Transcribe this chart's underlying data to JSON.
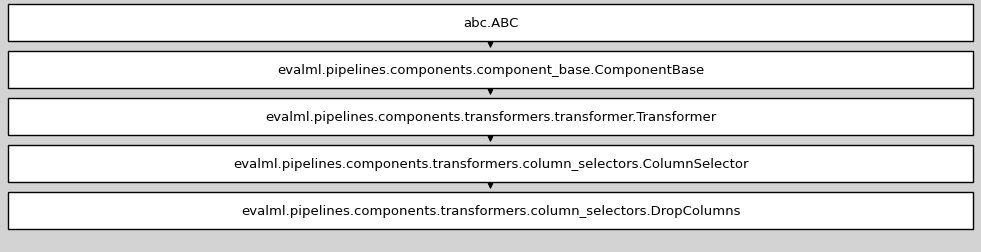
{
  "nodes": [
    "abc.ABC",
    "evalml.pipelines.components.component_base.ComponentBase",
    "evalml.pipelines.components.transformers.transformer.Transformer",
    "evalml.pipelines.components.transformers.column_selectors.ColumnSelector",
    "evalml.pipelines.components.transformers.column_selectors.DropColumns"
  ],
  "bg_color": "#d3d3d3",
  "box_edge_color": "#000000",
  "box_fill_color": "#ffffff",
  "arrow_color": "#000000",
  "font_size": 9.5,
  "font_family": "DejaVu Sans",
  "text_color": "#000000",
  "fig_width": 9.81,
  "fig_height": 2.53,
  "dpi": 100
}
